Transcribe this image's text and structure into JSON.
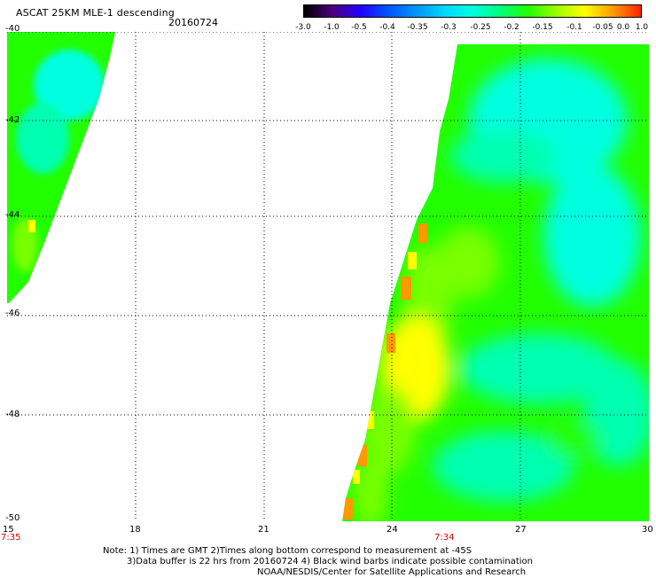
{
  "header": {
    "title": "ASCAT 25KM MLE-1 descending",
    "date": "20160724"
  },
  "colorbar": {
    "labels": [
      "-3.0",
      "-1.0",
      "-0.5",
      "-0.4",
      "-0.35",
      "-0.3",
      "-0.25",
      "-0.2",
      "-0.15",
      "-0.1",
      "-0.05",
      "0.0",
      "1.0"
    ],
    "colors": [
      "#000000",
      "#4b007e",
      "#2200ff",
      "#0055ff",
      "#0096ff",
      "#00d8ff",
      "#00ffe0",
      "#00ff7a",
      "#22ff00",
      "#9cff00",
      "#ffff00",
      "#ff9900",
      "#ff2200"
    ]
  },
  "map": {
    "lon_labels": [
      "15",
      "18",
      "21",
      "24",
      "27",
      "30"
    ],
    "lat_labels": [
      "-40",
      "-42",
      "-44",
      "-46",
      "-48",
      "-50"
    ],
    "time_labels": [
      "7:35",
      "7:34"
    ],
    "time_color": "#d40000",
    "swath_colors": {
      "cyan": "#00ffe0",
      "aqua": "#00ffb0",
      "green": "#22ff00",
      "lime": "#78ff00",
      "yellow": "#ffff00",
      "orange": "#ff9900"
    }
  },
  "notes": {
    "line1": "Note: 1) Times are GMT 2)Times along bottom correspond to measurement at -45S",
    "line2": "3)Data buffer is 22 hrs from 20160724 4) Black wind barbs indicate possible contamination",
    "line3": "NOAA/NESDIS/Center for Satellite Applications and Research"
  }
}
